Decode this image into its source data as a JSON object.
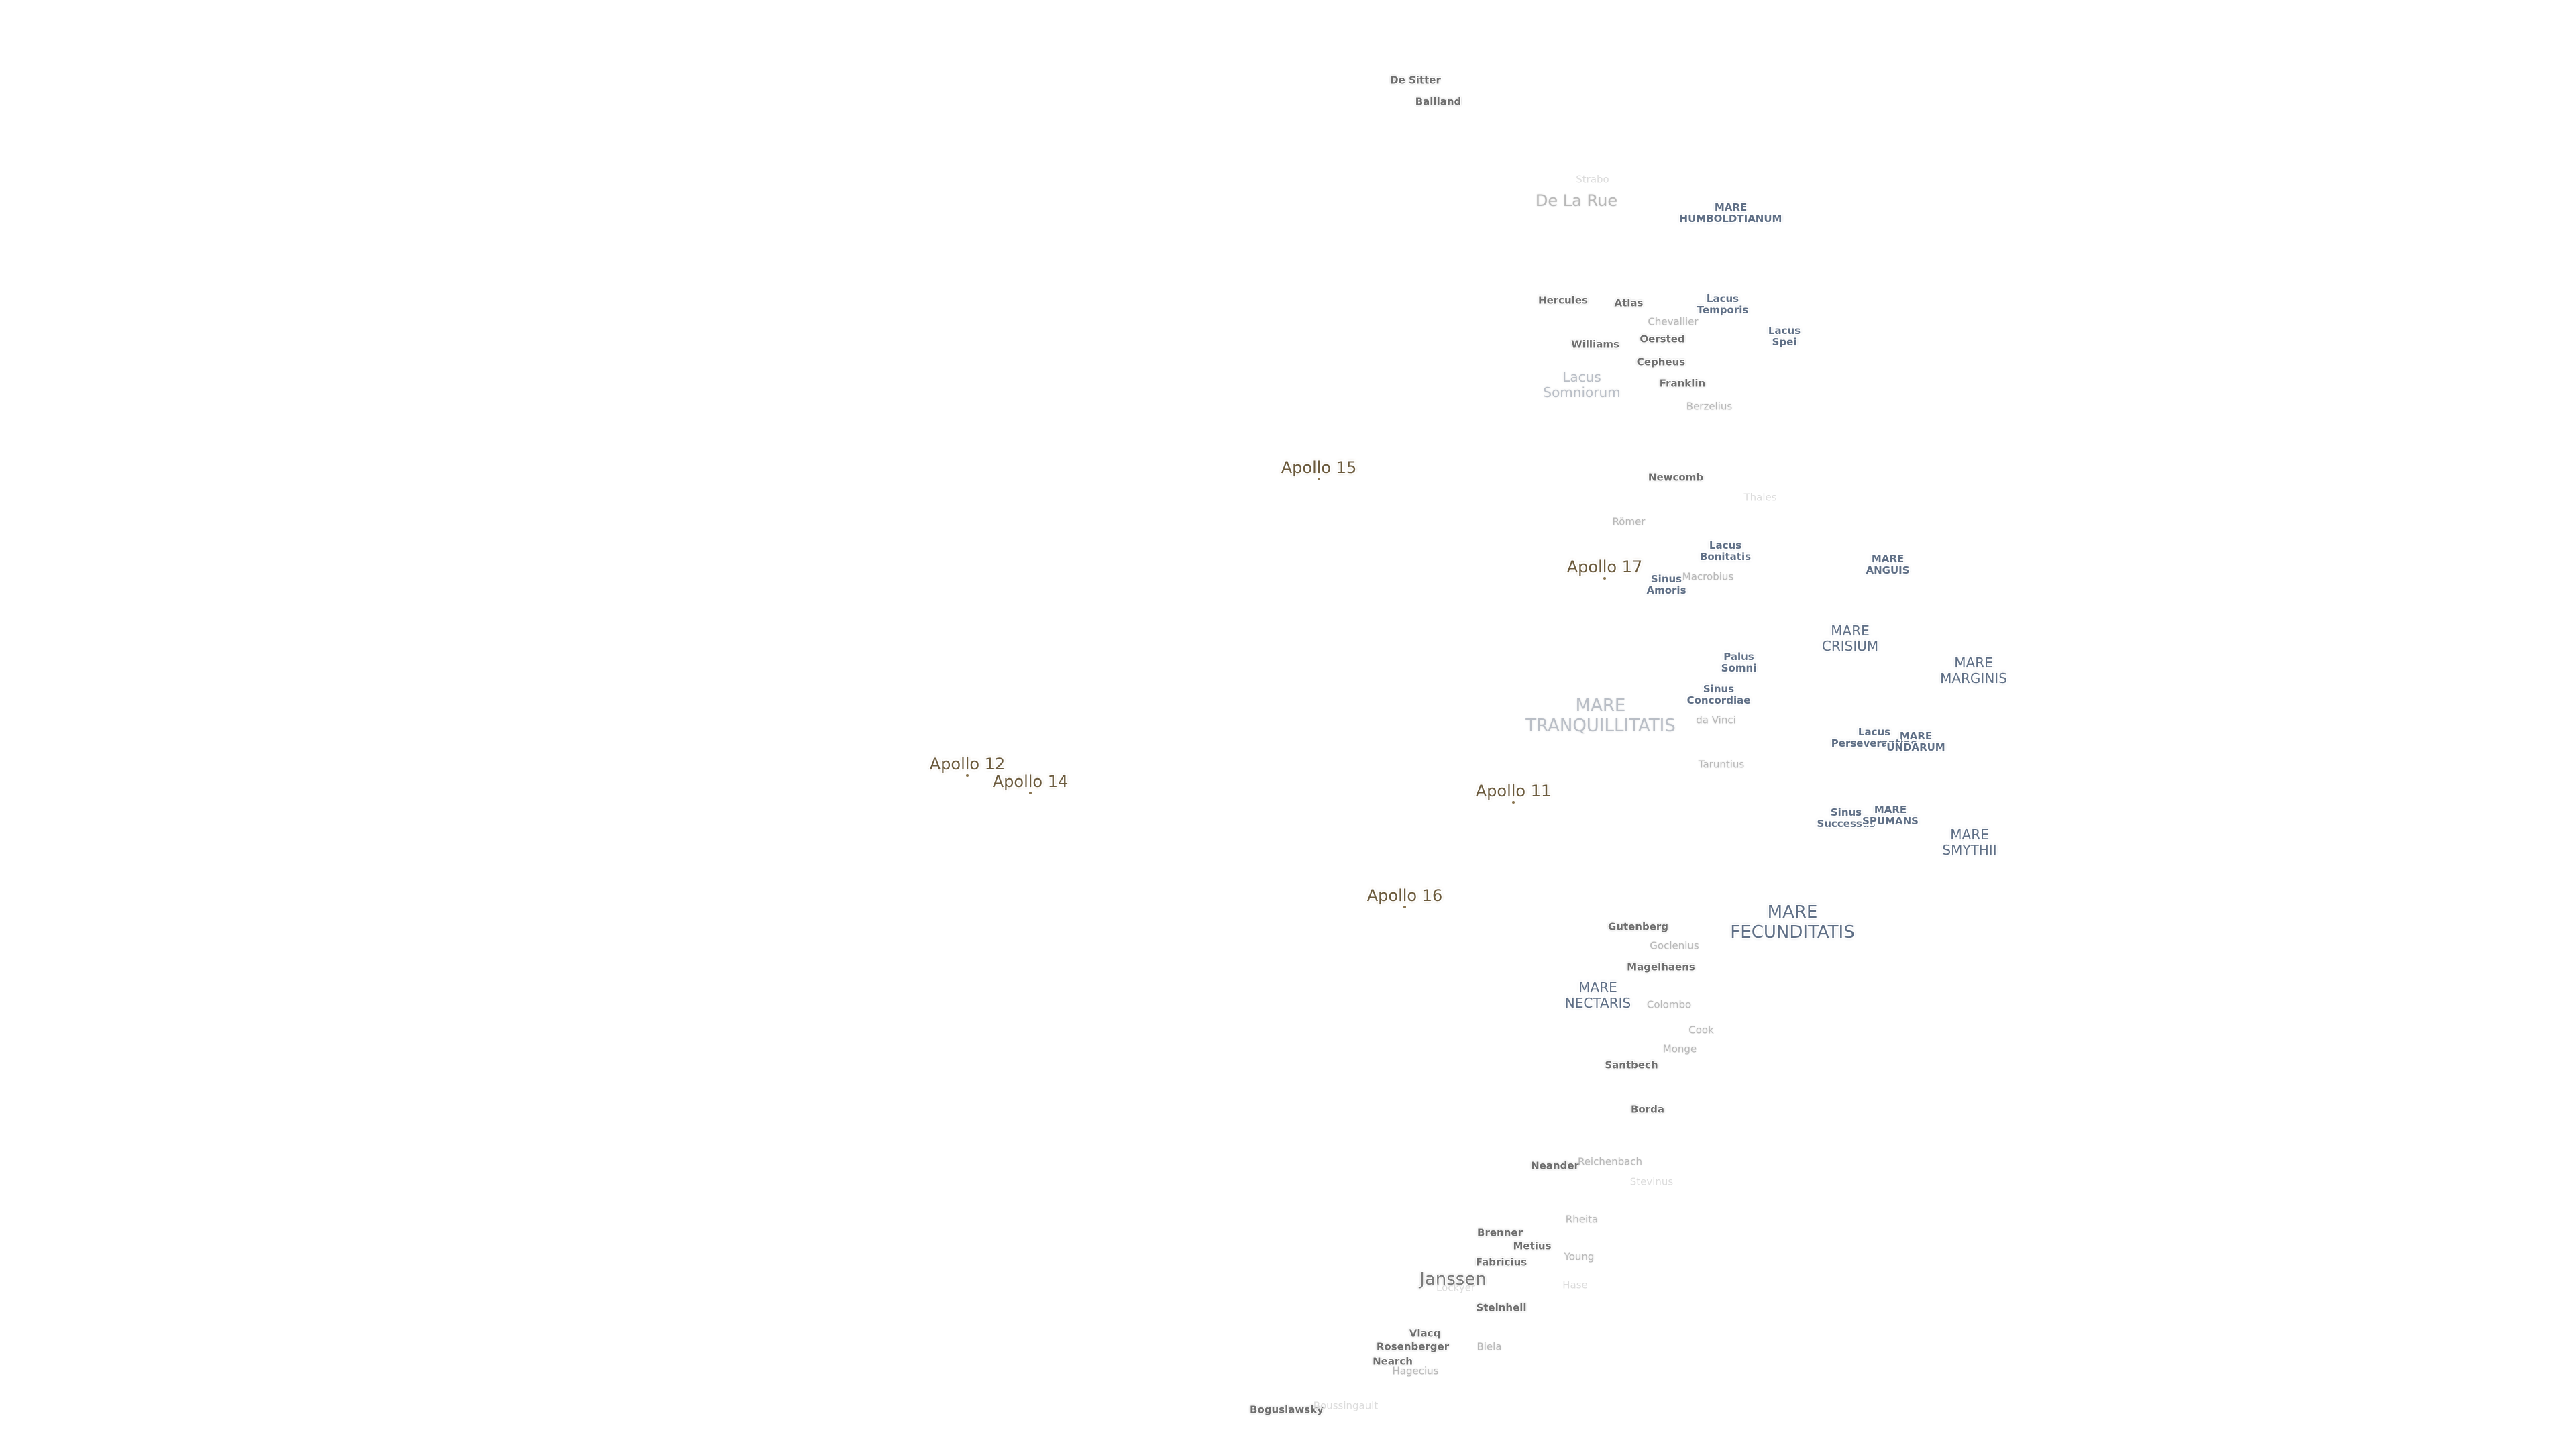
{
  "maria": [
    {
      "id": "mare-humboldtianum",
      "lines": [
        "MARE",
        "HUMBOLDTIANUM"
      ]
    },
    {
      "id": "lacus-temporis",
      "lines": [
        "Lacus",
        "Temporis"
      ]
    },
    {
      "id": "lacus-spei",
      "lines": [
        "Lacus",
        "Spei"
      ]
    },
    {
      "id": "lacus-somniorum",
      "lines": [
        "Lacus",
        "Somniorum"
      ]
    },
    {
      "id": "lacus-bonitatis",
      "lines": [
        "Lacus",
        "Bonitatis"
      ]
    },
    {
      "id": "sinus-amoris",
      "lines": [
        "Sinus",
        "Amoris"
      ]
    },
    {
      "id": "mare-anguis",
      "lines": [
        "MARE",
        "ANGUIS"
      ]
    },
    {
      "id": "mare-crisium",
      "lines": [
        "MARE",
        "CRISIUM"
      ]
    },
    {
      "id": "mare-marginis",
      "lines": [
        "MARE",
        "MARGINIS"
      ]
    },
    {
      "id": "palus-somni",
      "lines": [
        "Palus",
        "Somni"
      ]
    },
    {
      "id": "sinus-concordiae",
      "lines": [
        "Sinus",
        "Concordiae"
      ]
    },
    {
      "id": "mare-tranquillitatis",
      "lines": [
        "MARE",
        "TRANQUILLITATIS"
      ]
    },
    {
      "id": "lacus-perseverantiae",
      "lines": [
        "Lacus",
        "Perseverantiae"
      ]
    },
    {
      "id": "mare-undarum",
      "lines": [
        "MARE",
        "UNDARUM"
      ]
    },
    {
      "id": "sinus-successus",
      "lines": [
        "Sinus",
        "Successus"
      ]
    },
    {
      "id": "mare-spumans",
      "lines": [
        "MARE",
        "SPUMANS"
      ]
    },
    {
      "id": "mare-smythii",
      "lines": [
        "MARE",
        "SMYTHII"
      ]
    },
    {
      "id": "mare-fecunditatis",
      "lines": [
        "MARE",
        "FECUNDITATIS"
      ]
    },
    {
      "id": "mare-nectaris",
      "lines": [
        "MARE",
        "NECTARIS"
      ]
    }
  ],
  "craters": [
    {
      "id": "de-sitter",
      "name": "De Sitter"
    },
    {
      "id": "bailland",
      "name": "Bailland"
    },
    {
      "id": "strabo",
      "name": "Strabo"
    },
    {
      "id": "de-la-rue",
      "name": "De La Rue"
    },
    {
      "id": "hercules",
      "name": "Hercules"
    },
    {
      "id": "atlas",
      "name": "Atlas"
    },
    {
      "id": "chevallier",
      "name": "Chevallier"
    },
    {
      "id": "oersted",
      "name": "Oersted"
    },
    {
      "id": "williams",
      "name": "Williams"
    },
    {
      "id": "cepheus",
      "name": "Cepheus"
    },
    {
      "id": "franklin",
      "name": "Franklin"
    },
    {
      "id": "berzelius",
      "name": "Berzelius"
    },
    {
      "id": "newcomb",
      "name": "Newcomb"
    },
    {
      "id": "thales",
      "name": "Thales"
    },
    {
      "id": "romer",
      "name": "Römer"
    },
    {
      "id": "macrobius",
      "name": "Macrobius"
    },
    {
      "id": "da-vinci",
      "name": "da Vinci"
    },
    {
      "id": "taruntius",
      "name": "Taruntius"
    },
    {
      "id": "gutenberg",
      "name": "Gutenberg"
    },
    {
      "id": "goclenius",
      "name": "Goclenius"
    },
    {
      "id": "magelhaens",
      "name": "Magelhaens"
    },
    {
      "id": "colombo",
      "name": "Colombo"
    },
    {
      "id": "cook",
      "name": "Cook"
    },
    {
      "id": "monge",
      "name": "Monge"
    },
    {
      "id": "santbech",
      "name": "Santbech"
    },
    {
      "id": "borda",
      "name": "Borda"
    },
    {
      "id": "neander",
      "name": "Neander"
    },
    {
      "id": "reichenbach",
      "name": "Reichenbach"
    },
    {
      "id": "stevinus",
      "name": "Stevinus"
    },
    {
      "id": "rheita",
      "name": "Rheita"
    },
    {
      "id": "brenner",
      "name": "Brenner"
    },
    {
      "id": "metius",
      "name": "Metius"
    },
    {
      "id": "young",
      "name": "Young"
    },
    {
      "id": "fabricius",
      "name": "Fabricius"
    },
    {
      "id": "janssen",
      "name": "Janssen"
    },
    {
      "id": "lockyer",
      "name": "Lockyer"
    },
    {
      "id": "hase",
      "name": "Hase"
    },
    {
      "id": "steinheil",
      "name": "Steinheil"
    },
    {
      "id": "vlacq",
      "name": "Vlacq"
    },
    {
      "id": "rosenberger",
      "name": "Rosenberger"
    },
    {
      "id": "nearch",
      "name": "Nearch"
    },
    {
      "id": "hagecius",
      "name": "Hagecius"
    },
    {
      "id": "biela",
      "name": "Biela"
    },
    {
      "id": "boguslawsky",
      "name": "Boguslawsky"
    },
    {
      "id": "boussingault",
      "name": "Boussingault"
    }
  ],
  "apollo_sites": [
    {
      "id": "apollo-15",
      "name": "Apollo 15"
    },
    {
      "id": "apollo-17",
      "name": "Apollo 17"
    },
    {
      "id": "apollo-12",
      "name": "Apollo 12"
    },
    {
      "id": "apollo-14",
      "name": "Apollo 14"
    },
    {
      "id": "apollo-11",
      "name": "Apollo 11"
    },
    {
      "id": "apollo-16",
      "name": "Apollo 16"
    }
  ],
  "colors": {
    "background": "#ffffff",
    "mare_text": "#5f6f86",
    "crater_text": "#6e6e6e",
    "apollo_text": "#6b5a3c"
  }
}
